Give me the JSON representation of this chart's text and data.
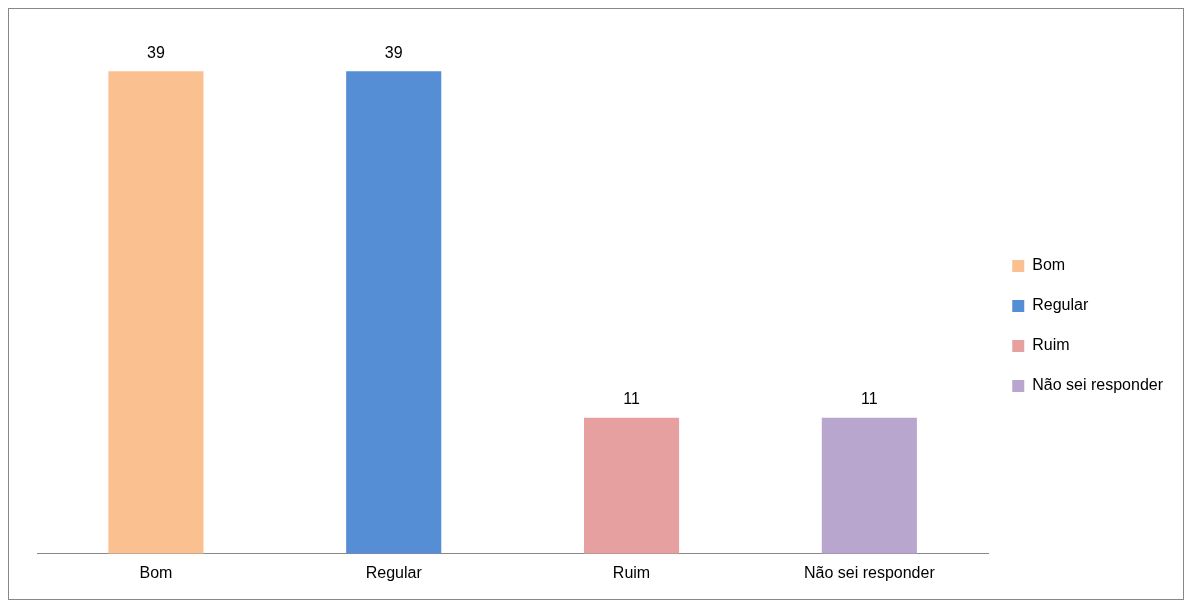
{
  "chart_data": {
    "type": "bar",
    "categories": [
      "Bom",
      "Regular",
      "Ruim",
      "Não sei responder"
    ],
    "series": [
      {
        "name": "Bom",
        "color": "#fac090",
        "values": [
          39,
          null,
          null,
          null
        ]
      },
      {
        "name": "Regular",
        "color": "#558ed5",
        "values": [
          null,
          39,
          null,
          null
        ]
      },
      {
        "name": "Ruim",
        "color": "#e6a0a0",
        "values": [
          null,
          null,
          11,
          null
        ]
      },
      {
        "name": "Não sei responder",
        "color": "#b8a6cf",
        "values": [
          null,
          null,
          null,
          11
        ]
      }
    ],
    "data_labels": true,
    "legend": "right",
    "grid": false,
    "relative": false
  }
}
